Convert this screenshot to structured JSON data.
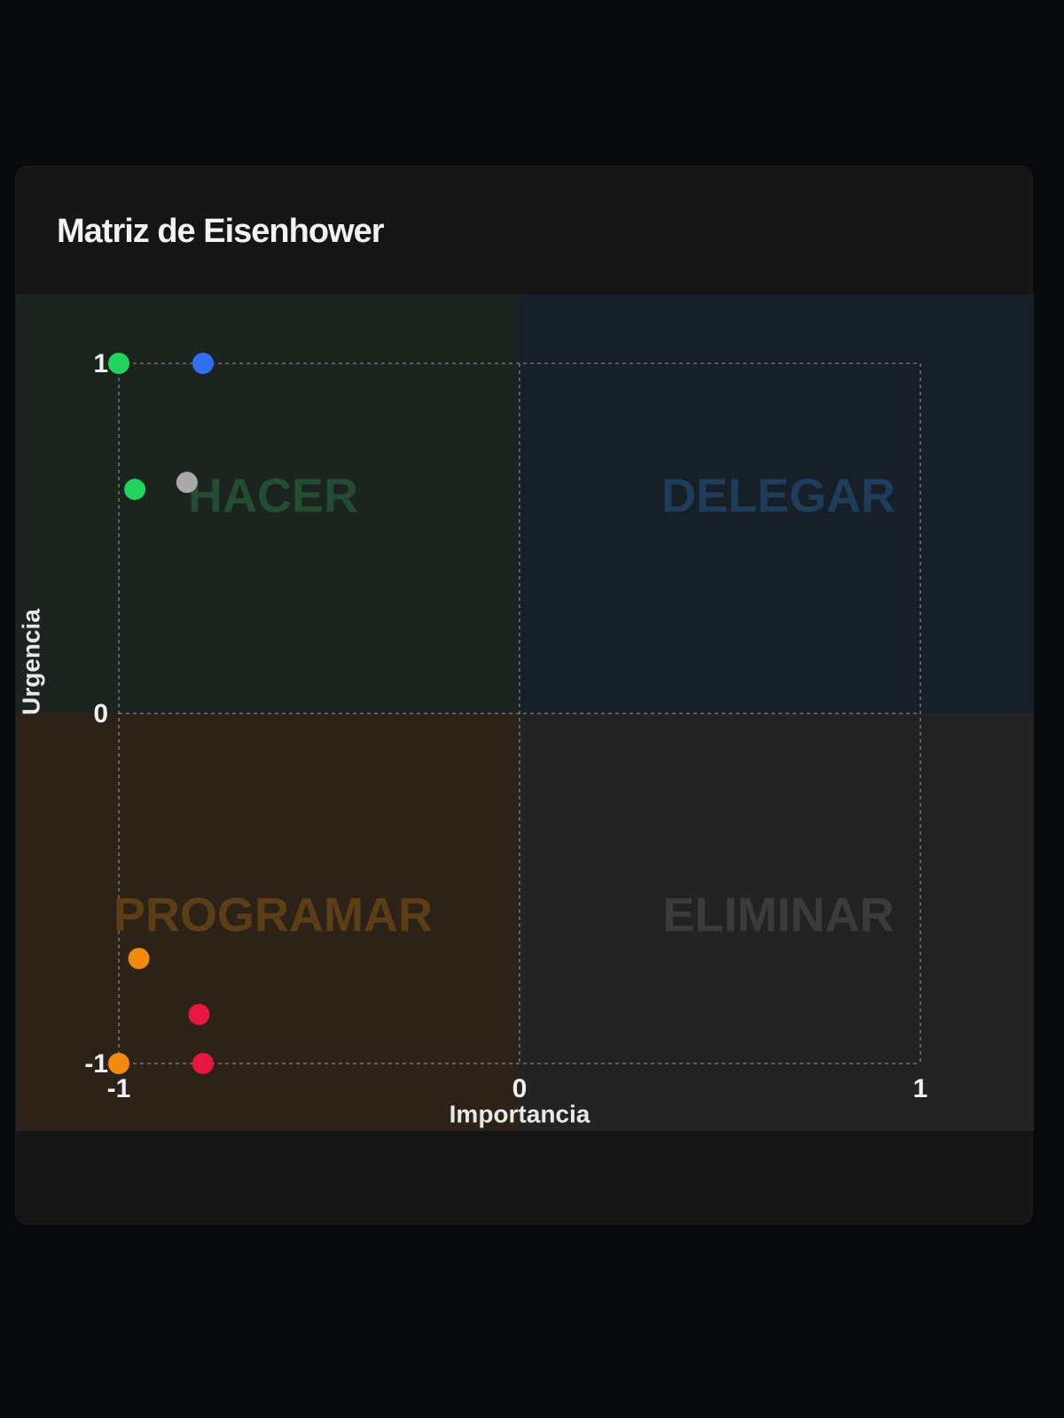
{
  "card": {
    "title": "Matriz de Eisenhower"
  },
  "chart_data": {
    "type": "scatter",
    "title": "Matriz de Eisenhower",
    "xlabel": "Importancia",
    "ylabel": "Urgencia",
    "xlim": [
      -1,
      1
    ],
    "ylim": [
      -1,
      1
    ],
    "x_ticks": [
      "-1",
      "0",
      "1"
    ],
    "y_ticks": [
      "-1",
      "0",
      "1"
    ],
    "grid": true,
    "quadrants": [
      {
        "id": "hacer",
        "label": "HACER",
        "bg": "#1c241f",
        "text_color": "#244c30"
      },
      {
        "id": "delegar",
        "label": "DELEGAR",
        "bg": "#172028",
        "text_color": "#1e3c5c"
      },
      {
        "id": "programar",
        "label": "PROGRAMAR",
        "bg": "#2d2218",
        "text_color": "#5c3e16"
      },
      {
        "id": "eliminar",
        "label": "ELIMINAR",
        "bg": "#232323",
        "text_color": "#3b3b3b"
      }
    ],
    "points": [
      {
        "x": -1.0,
        "y": 1.0,
        "color": "#22d35e"
      },
      {
        "x": -0.79,
        "y": 1.0,
        "color": "#2f6ff0"
      },
      {
        "x": -0.96,
        "y": 0.64,
        "color": "#22d35e"
      },
      {
        "x": -0.83,
        "y": 0.66,
        "color": "#a9a9a9"
      },
      {
        "x": -0.95,
        "y": -0.7,
        "color": "#f28a0c"
      },
      {
        "x": -0.8,
        "y": -0.86,
        "color": "#e8173f"
      },
      {
        "x": -1.0,
        "y": -1.0,
        "color": "#f28a0c"
      },
      {
        "x": -0.79,
        "y": -1.0,
        "color": "#e8173f"
      }
    ]
  }
}
